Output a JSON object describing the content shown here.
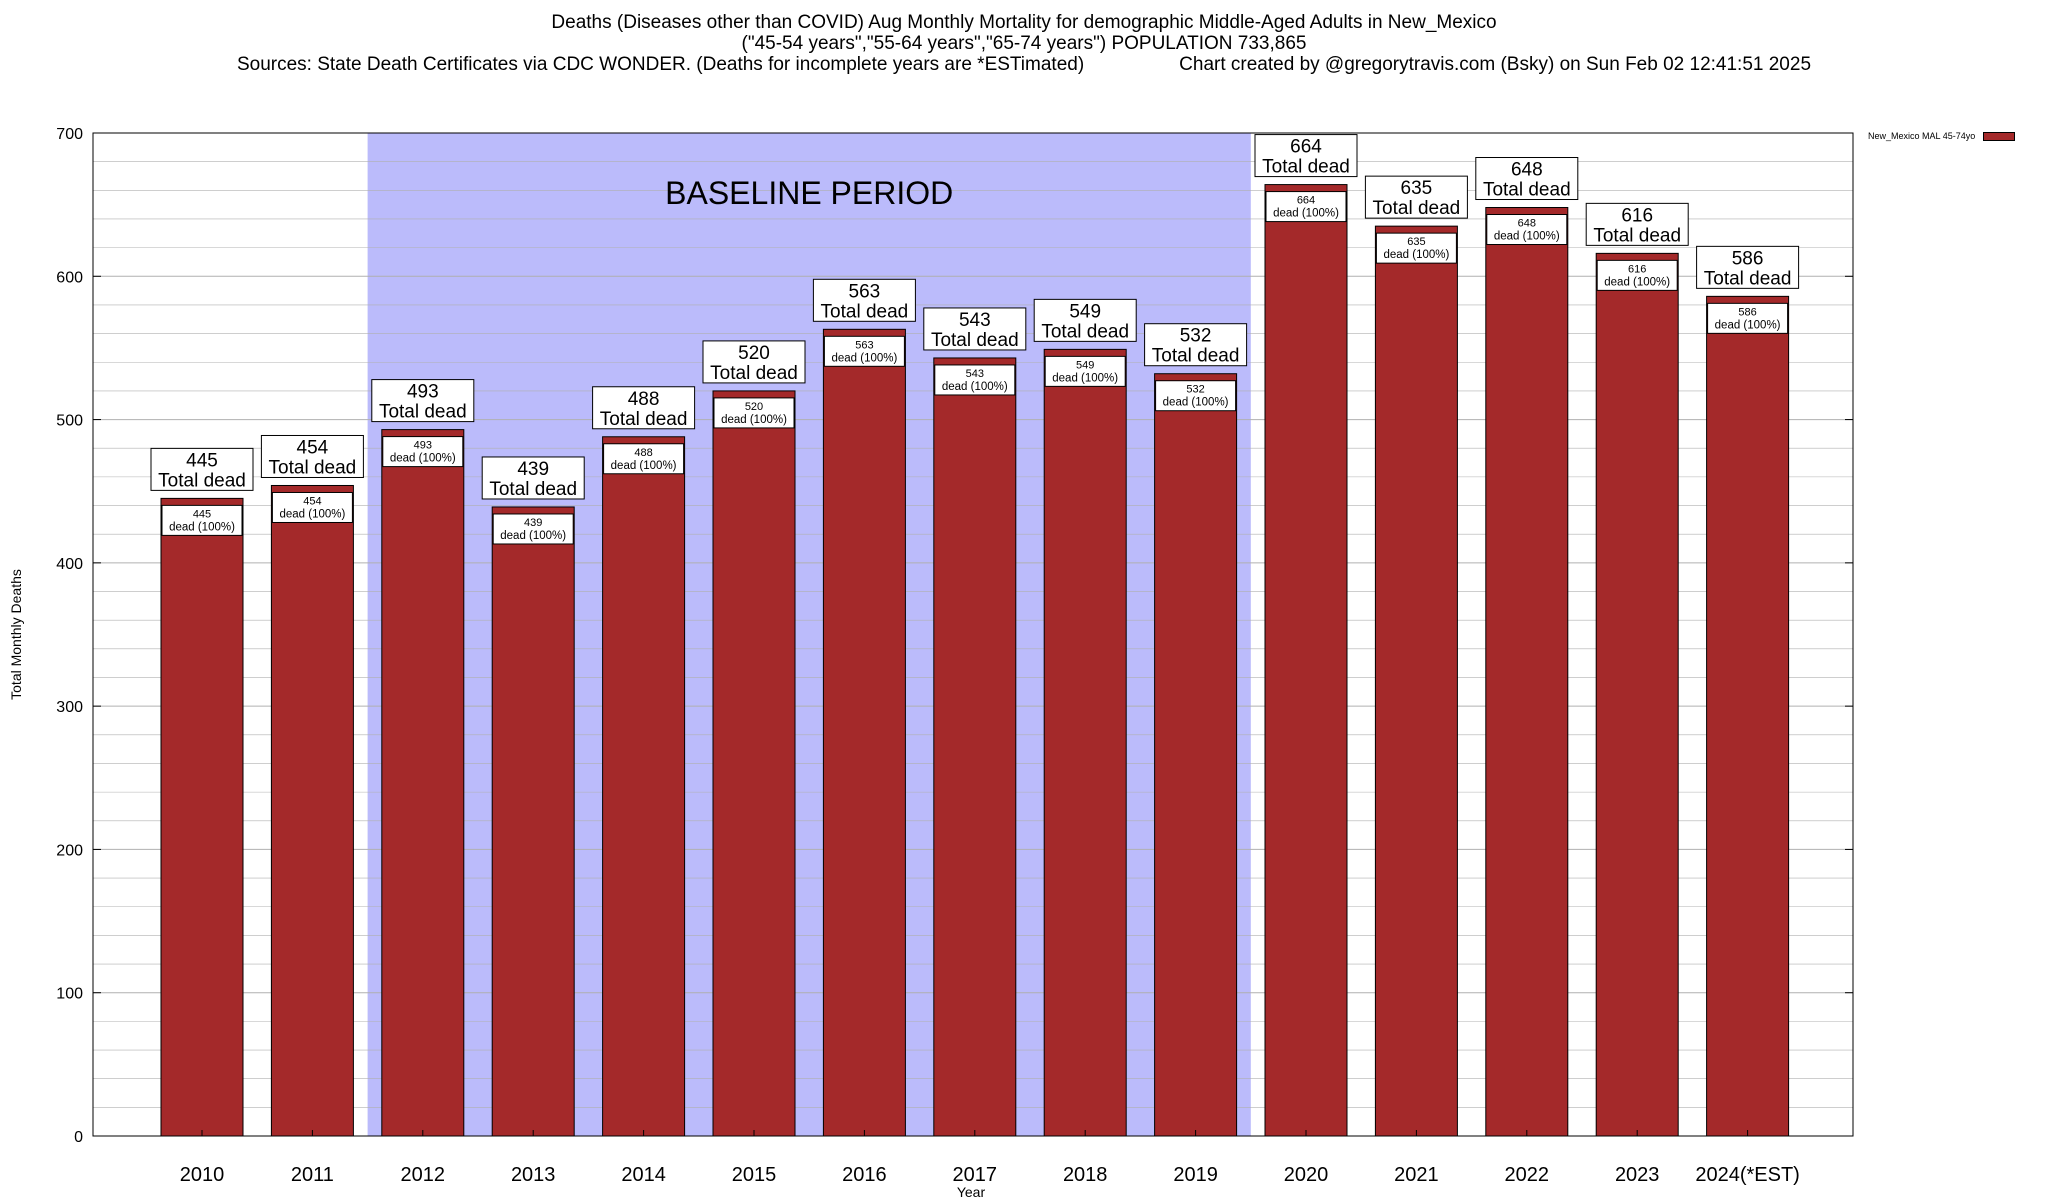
{
  "title": {
    "line1": "Deaths (Diseases other than COVID) Aug Monthly Mortality for demographic Middle-Aged Adults in New_Mexico",
    "line2": "(\"45-54 years\",\"55-64 years\",\"65-74 years\") POPULATION 733,865",
    "sources": "Sources: State Death Certificates via CDC WONDER. (Deaths for incomplete years are *ESTimated)",
    "credit": "Chart created by @gregorytravis.com (Bsky) on Sun Feb 02 12:41:51 2025"
  },
  "colors": {
    "bar": "#a4292a",
    "baseline_band": "#bbbbfb",
    "grid": "#b0b0b0"
  },
  "chart_data": {
    "type": "bar",
    "categories": [
      "2010",
      "2011",
      "2012",
      "2013",
      "2014",
      "2015",
      "2016",
      "2017",
      "2018",
      "2019",
      "2020",
      "2021",
      "2022",
      "2023",
      "2024(*EST)"
    ],
    "series": [
      {
        "name": "New_Mexico MAL 45-74yo",
        "values": [
          445,
          454,
          493,
          439,
          488,
          520,
          563,
          543,
          549,
          532,
          664,
          635,
          648,
          616,
          586
        ]
      }
    ],
    "bar_top_label": "Total dead",
    "bar_inner_label": "dead (100%)",
    "baseline": {
      "label": "BASELINE PERIOD",
      "from": "2012",
      "to": "2019"
    },
    "xlabel": "Year",
    "ylabel": "Total Monthly Deaths",
    "ylim": [
      0,
      700
    ],
    "yticks": [
      0,
      100,
      200,
      300,
      400,
      500,
      600,
      700
    ],
    "grid": true,
    "legend_position": "top-right"
  }
}
